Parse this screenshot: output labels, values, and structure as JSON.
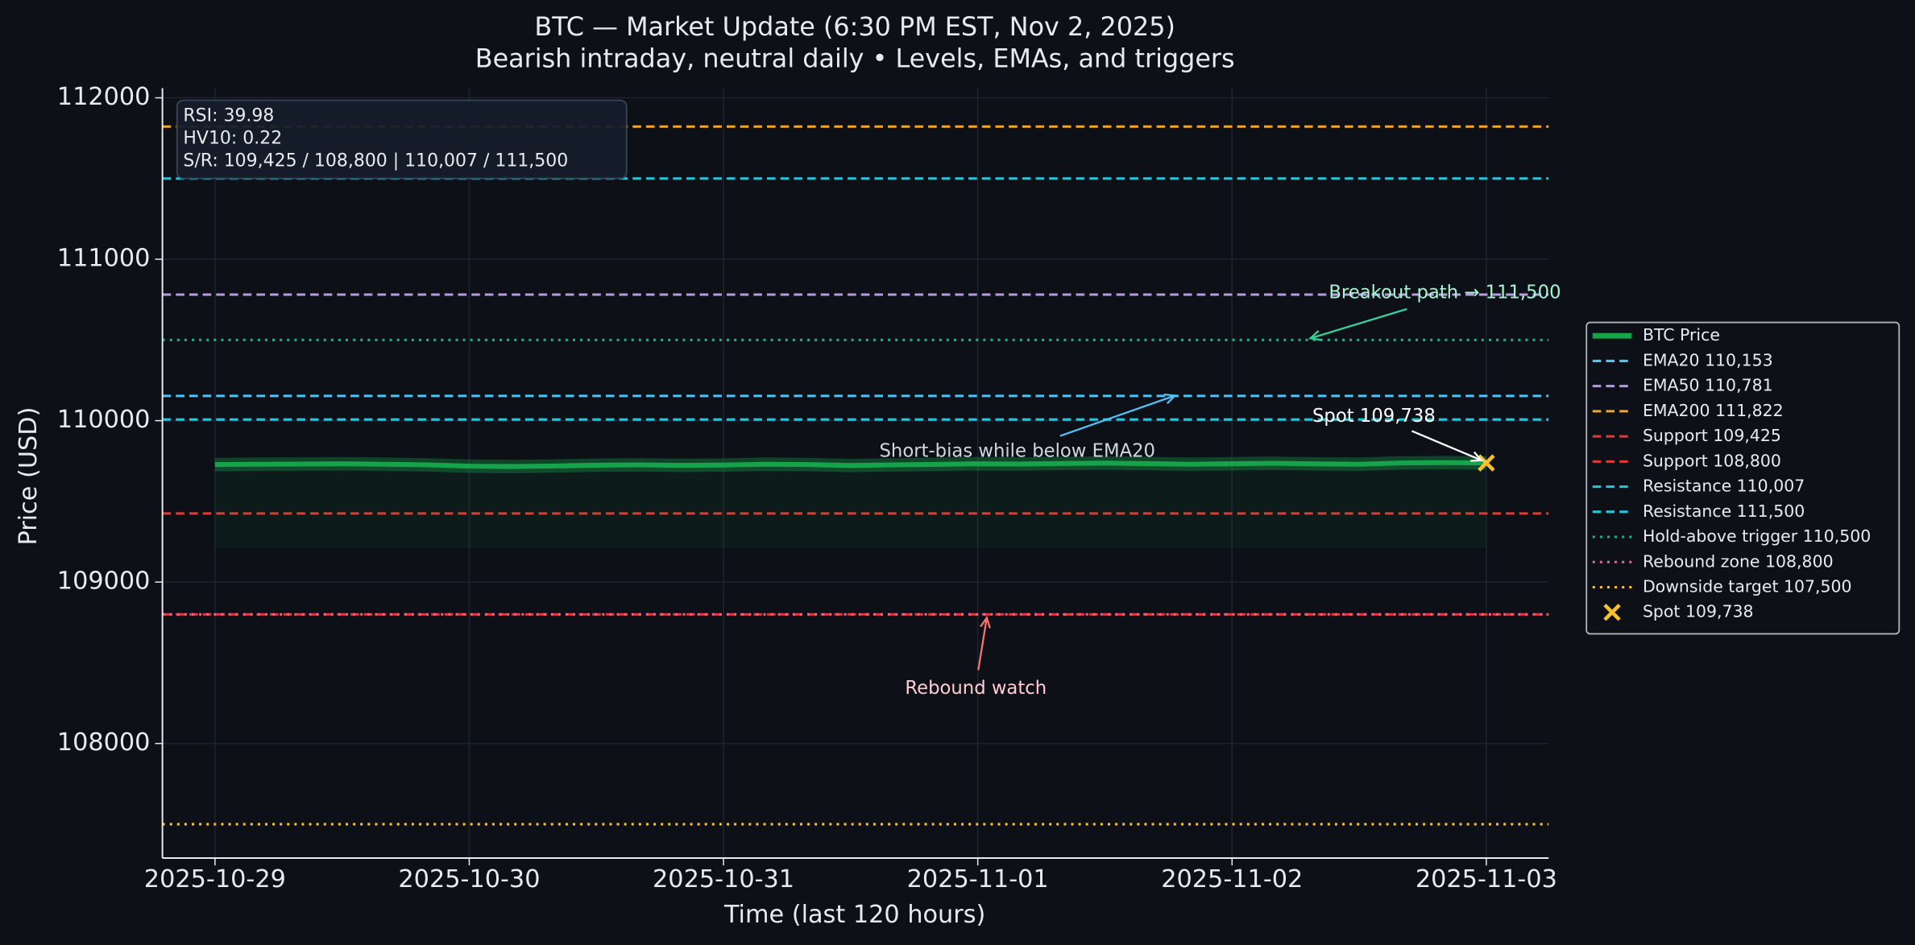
{
  "chart_data": {
    "type": "line",
    "title": "BTC — Market Update (6:30 PM EST, Nov 2, 2025)",
    "subtitle": "Bearish intraday, neutral daily • Levels, EMAs, and triggers",
    "x_label": "Time (last 120 hours)",
    "y_label": "Price (USD)",
    "x": [
      0,
      4,
      8,
      12,
      16,
      20,
      24,
      28,
      32,
      36,
      40,
      44,
      48,
      52,
      56,
      60,
      64,
      68,
      72,
      76,
      80,
      84,
      88,
      92,
      96,
      100,
      104,
      108,
      112,
      116,
      120
    ],
    "series": [
      {
        "name": "BTC Price",
        "color": "#16a34a",
        "fill_to": 109210,
        "values": [
          109728,
          109730,
          109731,
          109733,
          109730,
          109726,
          109718,
          109716,
          109719,
          109724,
          109726,
          109723,
          109725,
          109730,
          109728,
          109722,
          109726,
          109729,
          109733,
          109731,
          109735,
          109737,
          109734,
          109730,
          109733,
          109736,
          109732,
          109730,
          109738,
          109740,
          109738
        ]
      }
    ],
    "levels": [
      {
        "name": "EMA20 110,153",
        "value": 110153,
        "color": "#4fc3f7",
        "style": "dashed"
      },
      {
        "name": "EMA50 110,781",
        "value": 110781,
        "color": "#b39ddb",
        "style": "dashed"
      },
      {
        "name": "EMA200 111,822",
        "value": 111822,
        "color": "#f5a623",
        "style": "dashed"
      },
      {
        "name": "Support 109,425",
        "value": 109425,
        "color": "#e53935",
        "style": "dashed"
      },
      {
        "name": "Support 108,800",
        "value": 108800,
        "color": "#e53935",
        "style": "dashed"
      },
      {
        "name": "Resistance 110,007",
        "value": 110007,
        "color": "#26c6da",
        "style": "dashed"
      },
      {
        "name": "Resistance 111,500",
        "value": 111500,
        "color": "#26c6da",
        "style": "dashed"
      },
      {
        "name": "Hold-above trigger 110,500",
        "value": 110500,
        "color": "#10b981",
        "style": "dotted"
      },
      {
        "name": "Rebound zone 108,800",
        "value": 108800,
        "color": "#f06292",
        "style": "dotted"
      },
      {
        "name": "Downside target 107,500",
        "value": 107500,
        "color": "#fbc02d",
        "style": "dotted"
      }
    ],
    "markers": [
      {
        "name": "Spot 109,738",
        "x": 120,
        "value": 109738,
        "color": "#fbc02d",
        "marker": "x"
      }
    ],
    "annotations": [
      {
        "text": "Breakout path → 111,500",
        "color": "#a7f3d0",
        "arrow_color": "#34d399"
      },
      {
        "text": "Short-bias while below EMA20",
        "color": "#cfd8dc",
        "arrow_color": "#4fc3f7"
      },
      {
        "text": "Spot 109,738",
        "color": "#ffffff",
        "arrow_color": "#ffffff"
      },
      {
        "text": "Rebound watch",
        "color": "#ffcdd2",
        "arrow_color": "#f87171"
      }
    ],
    "info_box": [
      "RSI: 39.98",
      "HV10: 0.22",
      "S/R: 109,425 / 108,800 | 110,007 / 111,500"
    ],
    "xlim": [
      -4.96,
      125.88
    ],
    "ylim": [
      107290,
      112060
    ],
    "xticks": [
      {
        "value": 0,
        "label": "2025-10-29"
      },
      {
        "value": 24,
        "label": "2025-10-30"
      },
      {
        "value": 48,
        "label": "2025-10-31"
      },
      {
        "value": 72,
        "label": "2025-11-01"
      },
      {
        "value": 96,
        "label": "2025-11-02"
      },
      {
        "value": 120,
        "label": "2025-11-03"
      }
    ],
    "yticks": [
      108000,
      109000,
      110000,
      111000,
      112000
    ],
    "grid": true,
    "legend": "right"
  }
}
